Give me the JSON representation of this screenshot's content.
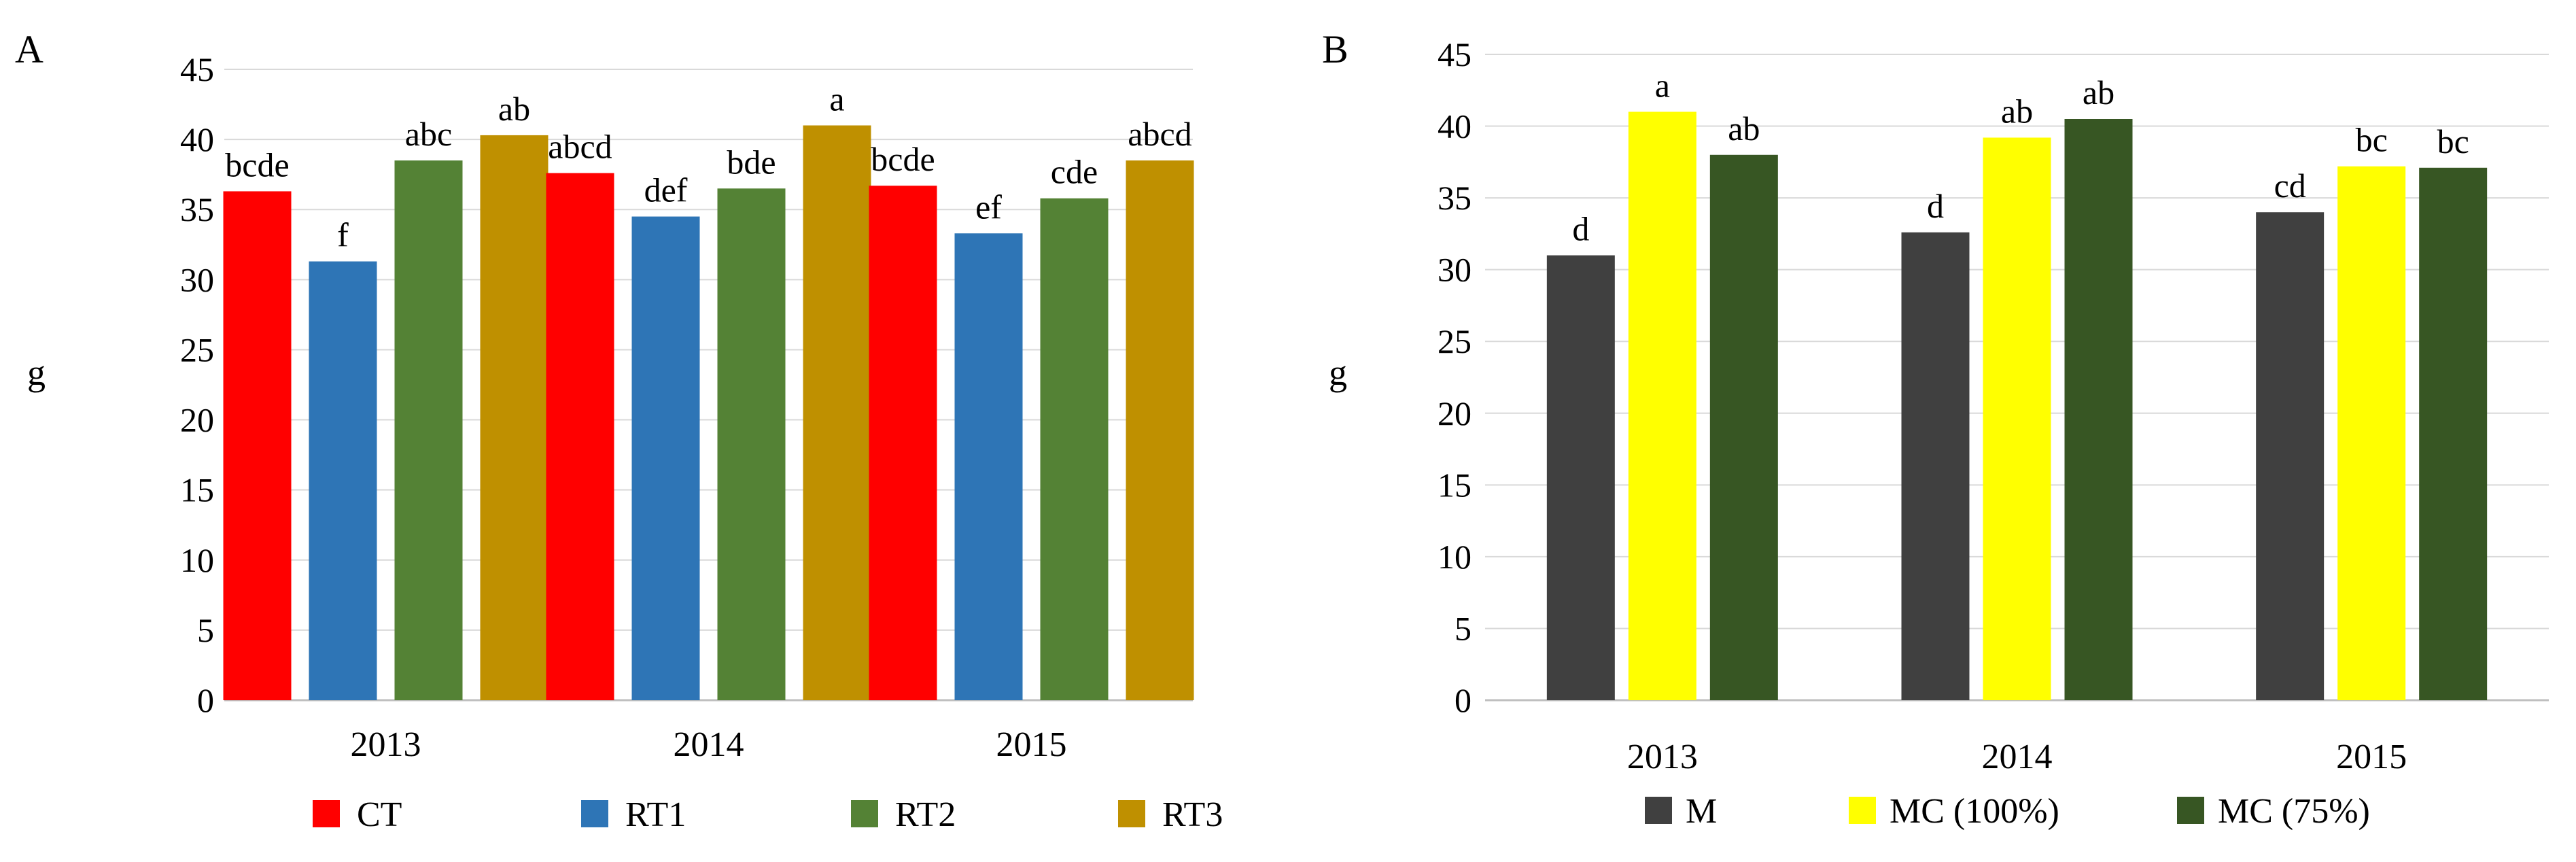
{
  "chart_data": [
    {
      "type": "bar",
      "panel": "A",
      "title": "",
      "xlabel": "",
      "ylabel": "g",
      "ylim": [
        0,
        45
      ],
      "yticks": [
        0,
        5,
        10,
        15,
        20,
        25,
        30,
        35,
        40,
        45
      ],
      "grid": true,
      "legend_position": "bottom",
      "categories": [
        "2013",
        "2014",
        "2015"
      ],
      "series": [
        {
          "name": "CT",
          "color": "#ff0000",
          "values": [
            36.3,
            37.6,
            36.7
          ],
          "labels": [
            "bcde",
            "abcd",
            "bcde"
          ]
        },
        {
          "name": "RT1",
          "color": "#2e75b6",
          "values": [
            31.3,
            34.5,
            33.3
          ],
          "labels": [
            "f",
            "def",
            "ef"
          ]
        },
        {
          "name": "RT2",
          "color": "#548235",
          "values": [
            38.5,
            36.5,
            35.8
          ],
          "labels": [
            "abc",
            "bde",
            "cde"
          ]
        },
        {
          "name": "RT3",
          "color": "#bf9000",
          "values": [
            40.3,
            41.0,
            38.5
          ],
          "labels": [
            "ab",
            "a",
            "abcd"
          ]
        }
      ]
    },
    {
      "type": "bar",
      "panel": "B",
      "title": "",
      "xlabel": "",
      "ylabel": "g",
      "ylim": [
        0,
        45
      ],
      "yticks": [
        0,
        5,
        10,
        15,
        20,
        25,
        30,
        35,
        40,
        45
      ],
      "grid": true,
      "legend_position": "bottom",
      "categories": [
        "2013",
        "2014",
        "2015"
      ],
      "series": [
        {
          "name": "M",
          "color": "#404040",
          "values": [
            31.0,
            32.6,
            34.0
          ],
          "labels": [
            "d",
            "d",
            "cd"
          ]
        },
        {
          "name": "MC (100%)",
          "color": "#ffff00",
          "values": [
            41.0,
            39.2,
            37.2
          ],
          "labels": [
            "a",
            "ab",
            "bc"
          ]
        },
        {
          "name": "MC (75%)",
          "color": "#375623",
          "values": [
            38.0,
            40.5,
            37.1
          ],
          "labels": [
            "ab",
            "ab",
            "bc"
          ]
        }
      ]
    }
  ]
}
